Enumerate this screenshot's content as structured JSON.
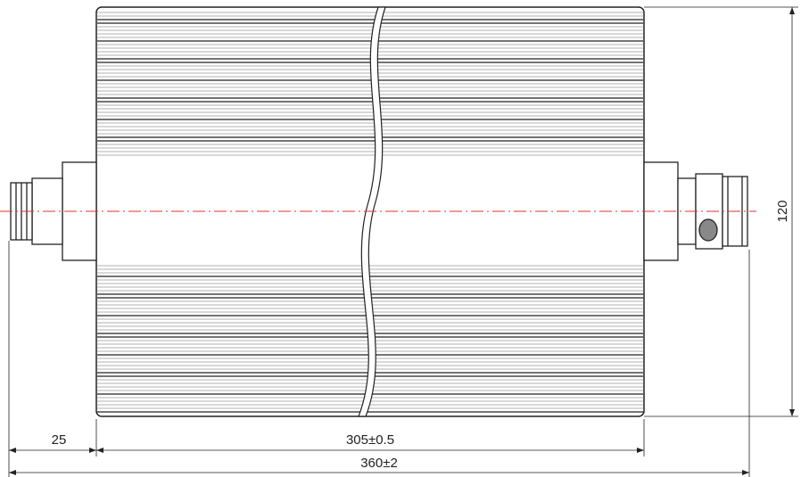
{
  "dimensions": {
    "flange_length": "25",
    "body_length": "305±0.5",
    "overall_length": "360±2",
    "body_height": "120"
  }
}
